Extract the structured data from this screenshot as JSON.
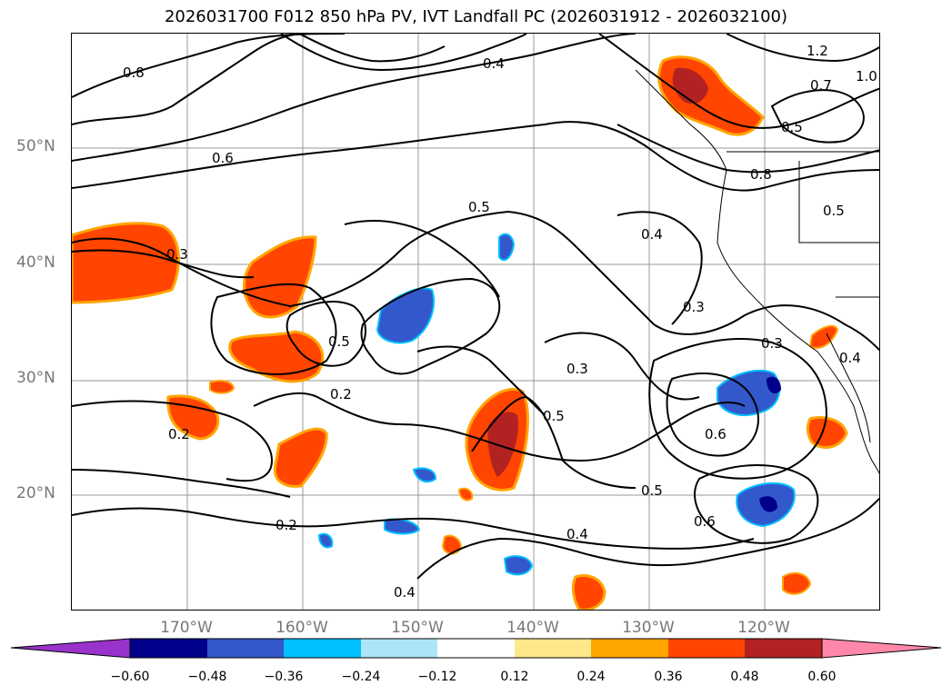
{
  "title": "2026031700 F012 850 hPa PV, IVT Landfall PC (2026031912 - 2026032100)",
  "lat_labels": [
    "50°N",
    "40°N",
    "30°N",
    "20°N"
  ],
  "lon_labels": [
    "170°W",
    "160°W",
    "150°W",
    "140°W",
    "130°W",
    "120°W"
  ],
  "colorbar": {
    "ticks": [
      "−0.60",
      "−0.48",
      "−0.36",
      "−0.24",
      "−0.12",
      "0.12",
      "0.24",
      "0.36",
      "0.48",
      "0.60"
    ],
    "colors": [
      "#9933cc",
      "#00008b",
      "#3358cc",
      "#00bfff",
      "#aee4fa",
      "#ffffff",
      "#ffe88a",
      "#ffa500",
      "#ff4500",
      "#b22222",
      "#ff88aa"
    ]
  },
  "contour_labels": [
    "1.2",
    "1.0",
    "0.8",
    "0.7",
    "0.6",
    "0.5",
    "0.4",
    "0.3",
    "0.2"
  ]
}
